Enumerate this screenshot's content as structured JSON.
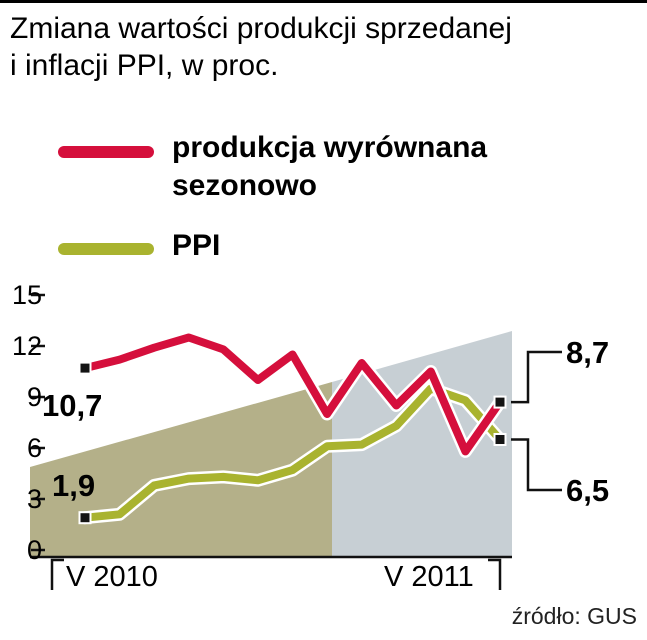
{
  "header": {
    "line1": "Zmiana wartości produkcji sprzedanej",
    "line2": "i inflacji PPI, w proc."
  },
  "source": {
    "text": "źródło: GUS"
  },
  "chart_data": {
    "type": "line",
    "x_tick_labels": [
      "V 2010",
      "V 2011"
    ],
    "ylim": [
      0,
      15
    ],
    "yticks": [
      0,
      3,
      6,
      9,
      12,
      15
    ],
    "series": [
      {
        "id": "produkcja",
        "name": "produkcja wyrównana sezonowo",
        "color": "#d50f3c",
        "values": [
          10.7,
          11.2,
          11.9,
          12.5,
          11.8,
          10.0,
          11.5,
          8.0,
          11.0,
          8.5,
          10.5,
          5.8,
          8.7
        ]
      },
      {
        "id": "ppi",
        "name": "PPI",
        "color": "#a9b32f",
        "values": [
          1.9,
          2.1,
          3.8,
          4.2,
          4.3,
          4.1,
          4.7,
          6.1,
          6.2,
          7.3,
          9.5,
          8.8,
          6.5
        ]
      }
    ],
    "annotations": {
      "produkcja_start": "10,7",
      "ppi_start": "1,9",
      "produkcja_end": "8,7",
      "ppi_end": "6,5"
    },
    "bands": [
      {
        "id": "band-left",
        "color": "#b4b089"
      },
      {
        "id": "band-right",
        "color": "#c7cfd4"
      }
    ],
    "legend_position": "top-left",
    "grid": false
  }
}
